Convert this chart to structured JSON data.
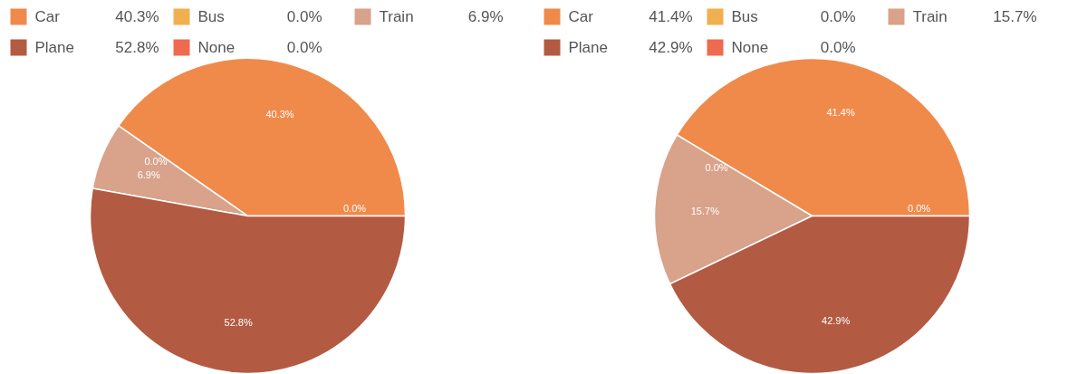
{
  "chart_data": [
    {
      "type": "pie",
      "categories": [
        "Car",
        "Bus",
        "Train",
        "Plane",
        "None"
      ],
      "values": [
        40.3,
        0.0,
        6.9,
        52.8,
        0.0
      ],
      "colors": [
        "#f08a4b",
        "#f0b050",
        "#d9a28a",
        "#b35a42",
        "#ef6a4e"
      ],
      "value_labels": [
        "40.3%",
        "0.0%",
        "6.9%",
        "52.8%",
        "0.0%"
      ],
      "legend": "top"
    },
    {
      "type": "pie",
      "categories": [
        "Car",
        "Bus",
        "Train",
        "Plane",
        "None"
      ],
      "values": [
        41.4,
        0.0,
        15.7,
        42.9,
        0.0
      ],
      "colors": [
        "#f08a4b",
        "#f0b050",
        "#d9a28a",
        "#b35a42",
        "#ef6a4e"
      ],
      "value_labels": [
        "41.4%",
        "0.0%",
        "15.7%",
        "42.9%",
        "0.0%"
      ],
      "legend": "top"
    }
  ]
}
